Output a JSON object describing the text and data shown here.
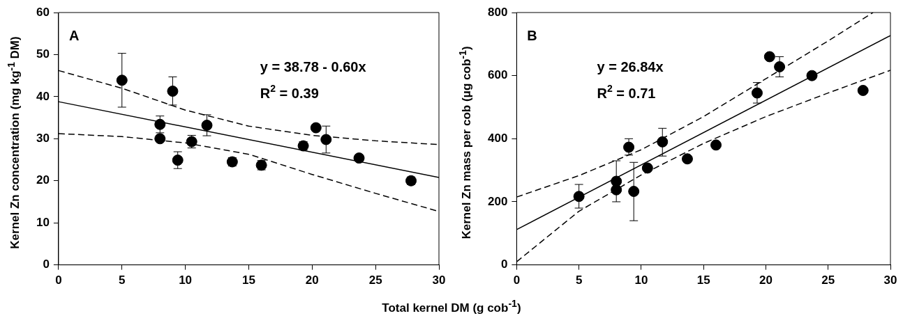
{
  "chart_data": [
    {
      "type": "scatter",
      "title": "A",
      "xlabel": "Total kernel DM (g cob$^{-1}$)",
      "ylabel": "Kernel Zn concentration (mg kg$^{-1}$ DM)",
      "annotations": [
        "y = 38.78 - 0.60x",
        "R$^{2}$ = 0.39"
      ],
      "xlim": [
        0,
        30
      ],
      "xticks": [
        0,
        5,
        10,
        15,
        20,
        25,
        30
      ],
      "ylim": [
        0,
        60
      ],
      "yticks": [
        0,
        10,
        20,
        30,
        40,
        50,
        60
      ],
      "grid": false,
      "legend": false,
      "marker": "circle",
      "series": [
        {
          "color": "#000000",
          "x": [
            5,
            8,
            8,
            9,
            9.4,
            10.5,
            11.7,
            13.7,
            16,
            19.3,
            20.3,
            21.1,
            23.7,
            27.8
          ],
          "values": [
            43.9,
            33.4,
            30.0,
            41.3,
            24.9,
            29.3,
            33.2,
            24.5,
            23.7,
            28.3,
            32.6,
            29.8,
            25.4,
            20.0
          ],
          "errors": [
            [
              37.5,
              50.3
            ],
            2,
            null,
            [
              38,
              44.7
            ],
            2,
            1.5,
            2.5,
            1,
            1.1,
            1,
            null,
            [
              26.6,
              33
            ],
            null,
            0.9
          ]
        },
        {
          "type": "line",
          "color": "#000000",
          "marker": "none",
          "line_style": "solid",
          "x": [
            0,
            30
          ],
          "values": [
            38.8,
            20.8
          ]
        },
        {
          "type": "line",
          "color": "#000000",
          "marker": "none",
          "line_style": "dashed",
          "x": [
            0,
            5,
            10,
            15,
            20,
            25,
            30
          ],
          "values": [
            46.2,
            42,
            36.8,
            33.0,
            30.8,
            29.5,
            28.6
          ]
        },
        {
          "type": "line",
          "color": "#000000",
          "marker": "none",
          "line_style": "dashed",
          "x": [
            0,
            5,
            10,
            15,
            20,
            25,
            30
          ],
          "values": [
            31.2,
            30.5,
            29,
            26.3,
            21.5,
            17,
            12.7
          ]
        }
      ]
    },
    {
      "type": "scatter",
      "title": "B",
      "ylabel": "Kernel Zn mass per cob (μg cob$^{-1}$)",
      "annotations": [
        "y = 26.84x",
        "R$^{2}$ = 0.71"
      ],
      "xlim": [
        0,
        30
      ],
      "xticks": [
        0,
        5,
        10,
        15,
        20,
        25,
        30
      ],
      "ylim": [
        0,
        800
      ],
      "yticks": [
        0,
        200,
        400,
        600,
        800
      ],
      "grid": false,
      "legend": false,
      "marker": "circle",
      "series": [
        {
          "color": "#000000",
          "x": [
            5,
            8,
            8,
            9,
            9.4,
            10.5,
            11.7,
            13.7,
            16,
            19.3,
            20.3,
            21.1,
            23.7,
            27.8
          ],
          "values": [
            217,
            265,
            238,
            373,
            233,
            307,
            390,
            336,
            380,
            545,
            660,
            628,
            600,
            553
          ],
          "errors": [
            [
              180,
              255
            ],
            [
              200,
              330
            ],
            null,
            [
              348,
              400
            ],
            [
              140,
              325
            ],
            null,
            [
              345,
              433
            ],
            null,
            null,
            [
              513,
              578
            ],
            null,
            [
              596,
              660
            ],
            null,
            null
          ]
        },
        {
          "type": "line",
          "color": "#000000",
          "marker": "none",
          "line_style": "solid",
          "x": [
            0,
            30
          ],
          "values": [
            112,
            727
          ]
        },
        {
          "type": "line",
          "color": "#000000",
          "marker": "none",
          "line_style": "dashed",
          "x": [
            0,
            5,
            10,
            15,
            20,
            25,
            28.6
          ],
          "values": [
            215,
            283,
            365,
            470,
            590,
            710,
            800
          ]
        },
        {
          "type": "line",
          "color": "#000000",
          "marker": "none",
          "line_style": "dashed",
          "x": [
            0,
            5,
            10,
            15,
            20,
            25,
            30
          ],
          "values": [
            10,
            170,
            285,
            385,
            470,
            545,
            617
          ]
        }
      ]
    }
  ]
}
